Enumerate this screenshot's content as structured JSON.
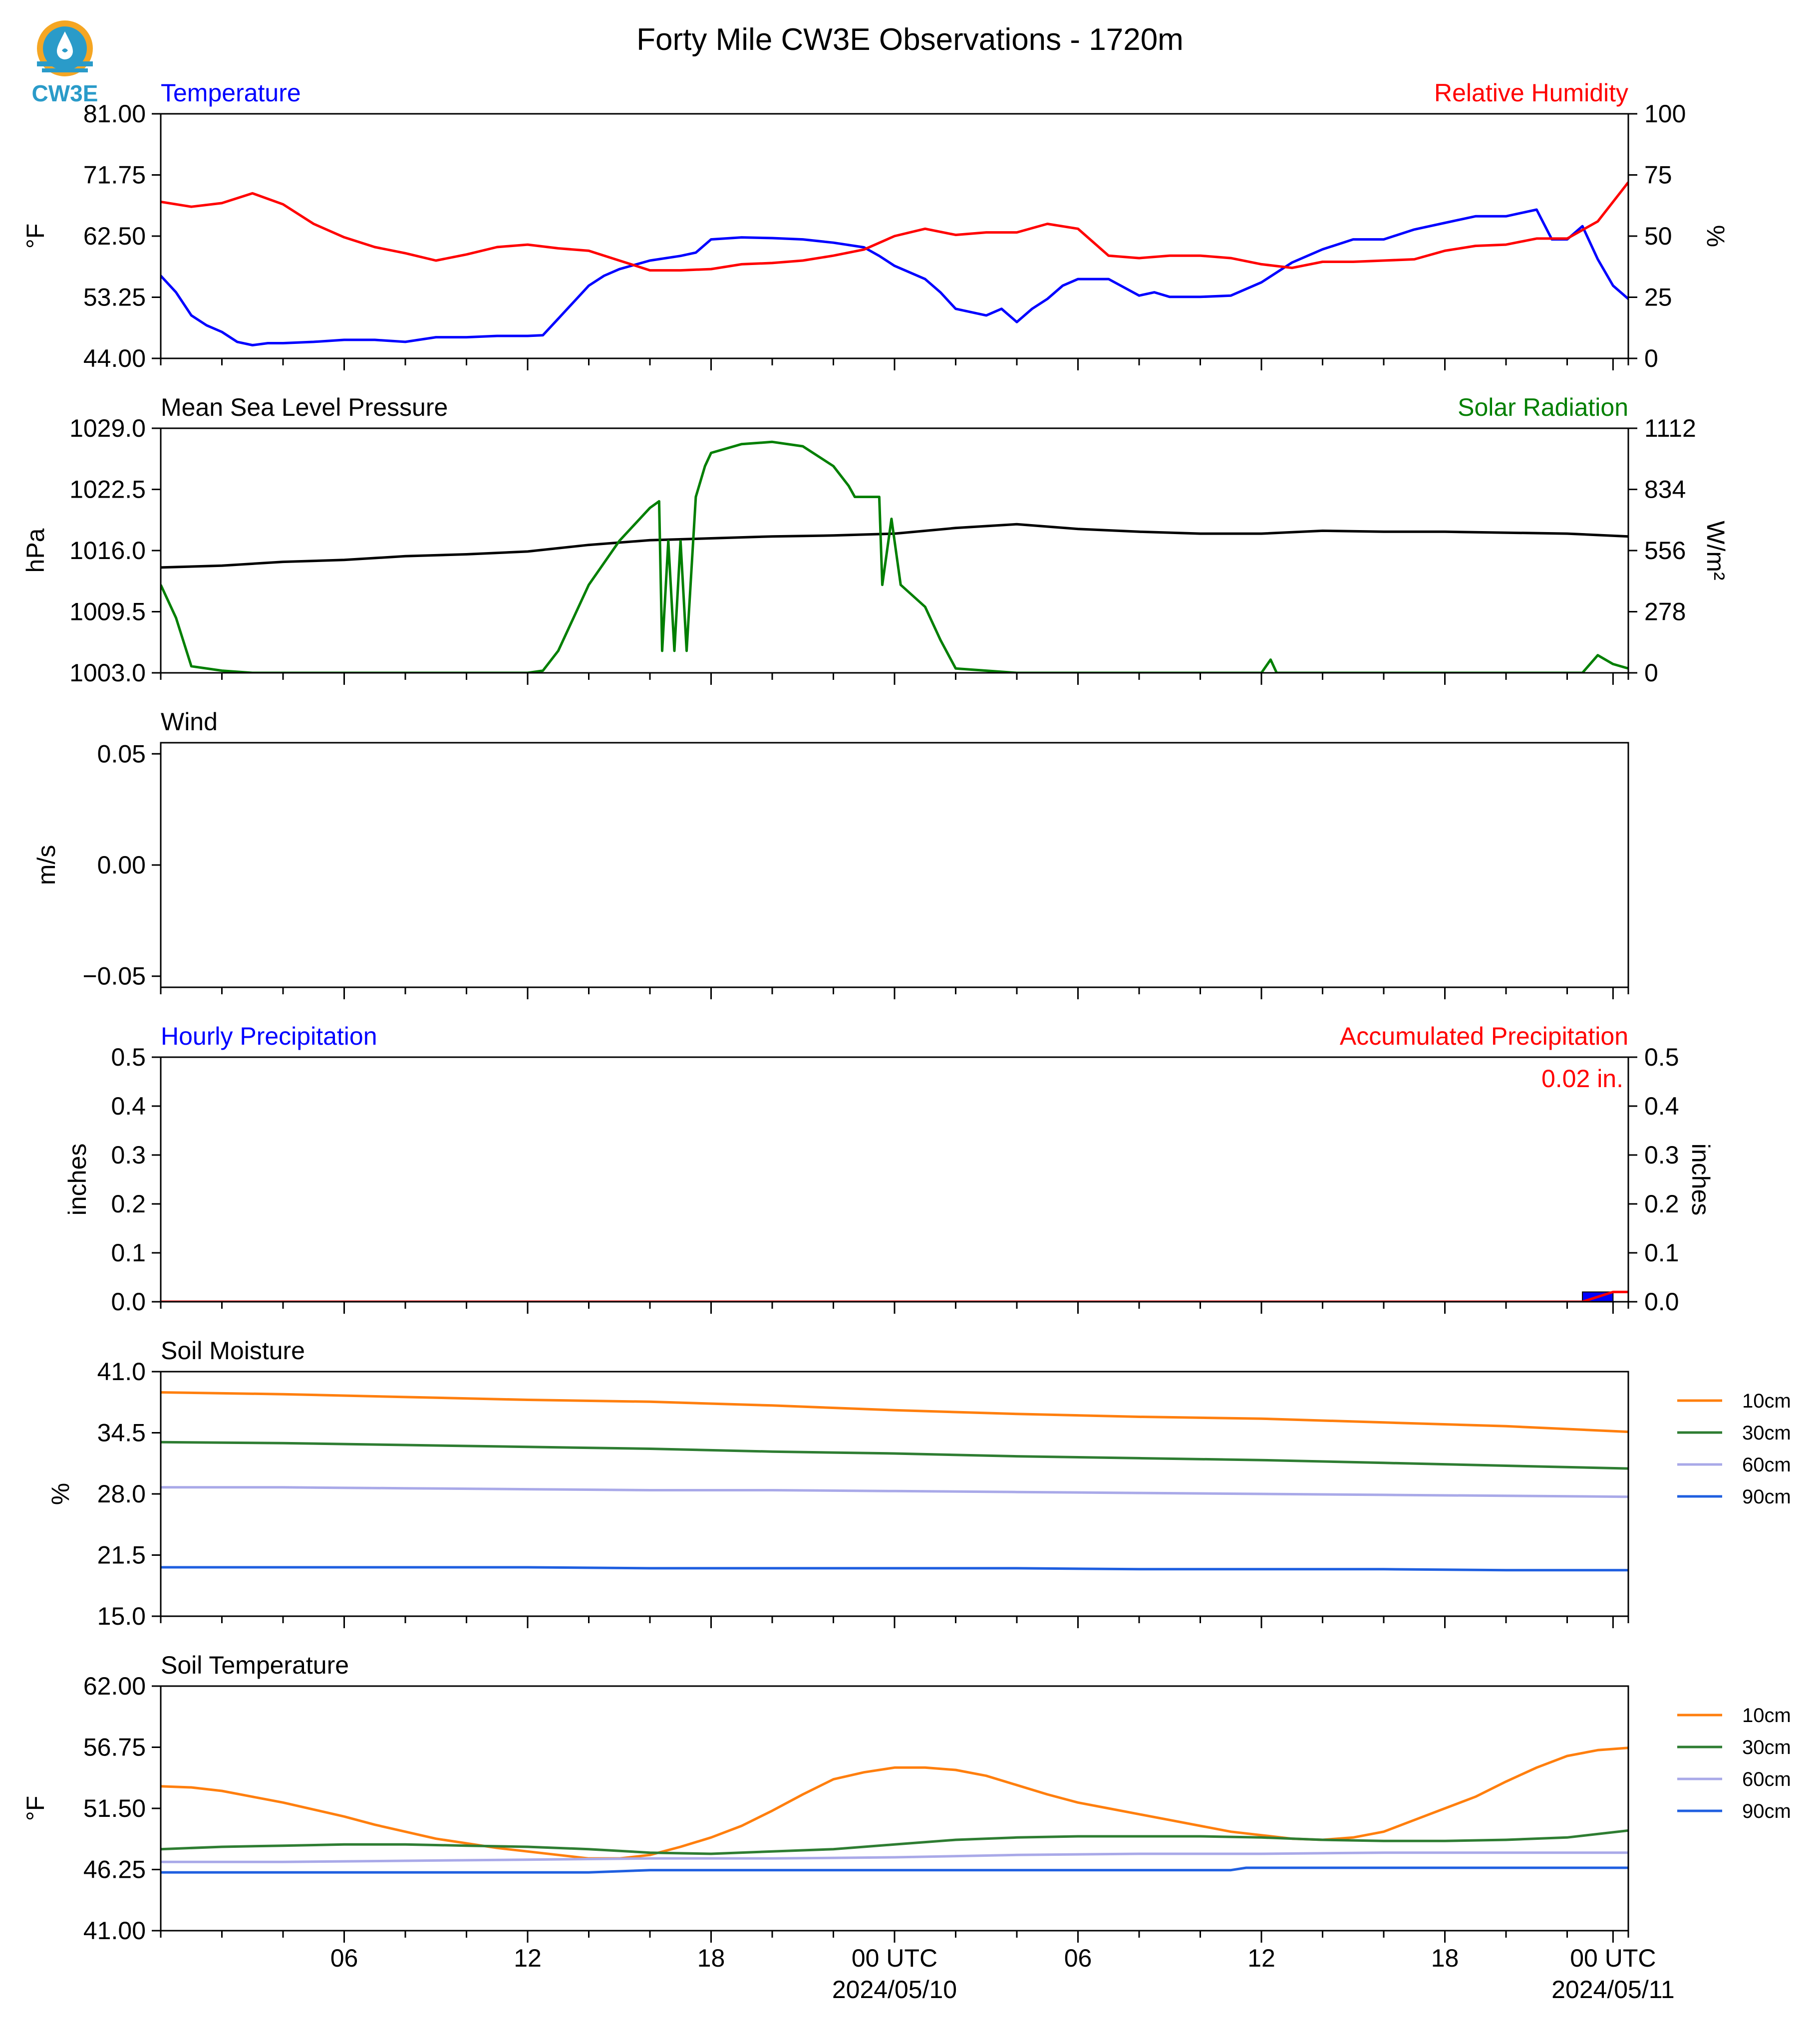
{
  "title": "Forty Mile CW3E Observations - 1720m",
  "logo": {
    "text": "CW3E",
    "color": "#2a9bc9",
    "accent": "#f5a623"
  },
  "colors": {
    "blue": "#0000ff",
    "red": "#ff0000",
    "green": "#007f00",
    "black": "#000000",
    "orange": "#ff7f0e",
    "darkgreen": "#2e7d32",
    "lavender": "#a9a9e8",
    "royal": "#1f5fe0"
  },
  "x_axis": {
    "tick_labels": [
      "06",
      "12",
      "18",
      "00 UTC",
      "06",
      "12",
      "18",
      "00 UTC"
    ],
    "date_labels": [
      "2024/05/10",
      "2024/05/11"
    ],
    "range_hours": [
      0,
      48
    ]
  },
  "panels": {
    "temperature": {
      "left_title": "Temperature",
      "right_title": "Relative Humidity",
      "left_unit": "°F",
      "right_unit": "%",
      "left_ticks": [
        "81.00",
        "71.75",
        "62.50",
        "53.25",
        "44.00"
      ],
      "right_ticks": [
        "100",
        "75",
        "50",
        "25",
        "0"
      ]
    },
    "pressure": {
      "left_title": "Mean Sea Level Pressure",
      "right_title": "Solar Radiation",
      "left_unit": "hPa",
      "right_unit": "W/m²",
      "left_ticks": [
        "1029.0",
        "1022.5",
        "1016.0",
        "1009.5",
        "1003.0"
      ],
      "right_ticks": [
        "1112",
        "834",
        "556",
        "278",
        "0"
      ]
    },
    "wind": {
      "left_title": "Wind",
      "left_unit": "m/s",
      "left_ticks": [
        "0.05",
        "0.00",
        "−0.05"
      ]
    },
    "precip": {
      "left_title": "Hourly Precipitation",
      "right_title": "Accumulated Precipitation",
      "left_unit": "inches",
      "right_unit": "inches",
      "left_ticks": [
        "0.5",
        "0.4",
        "0.3",
        "0.2",
        "0.1",
        "0.0"
      ],
      "right_ticks": [
        "0.5",
        "0.4",
        "0.3",
        "0.2",
        "0.1",
        "0.0"
      ],
      "accum_label": "0.02 in."
    },
    "soil_moisture": {
      "left_title": "Soil Moisture",
      "left_unit": "%",
      "left_ticks": [
        "41.0",
        "34.5",
        "28.0",
        "21.5",
        "15.0"
      ],
      "legend": [
        "10cm",
        "30cm",
        "60cm",
        "90cm"
      ]
    },
    "soil_temp": {
      "left_title": "Soil Temperature",
      "left_unit": "°F",
      "left_ticks": [
        "62.00",
        "56.75",
        "51.50",
        "46.25",
        "41.00"
      ],
      "legend": [
        "10cm",
        "30cm",
        "60cm",
        "90cm"
      ]
    }
  },
  "chart_data": [
    {
      "type": "line",
      "title": "Temperature / Relative Humidity",
      "xlim": [
        0,
        48
      ],
      "ylim": [
        44,
        81
      ],
      "y2lim": [
        0,
        100
      ],
      "series": [
        {
          "name": "Temperature",
          "axis": "left",
          "color": "#0000ff",
          "x": [
            0,
            0.5,
            1,
            1.5,
            2,
            2.5,
            3,
            3.5,
            4,
            5,
            6,
            7,
            8,
            9,
            10,
            11,
            12,
            12.5,
            13,
            13.5,
            14,
            14.5,
            15,
            16,
            17,
            17.5,
            18,
            19,
            20,
            21,
            22,
            23,
            23.5,
            24,
            25,
            25.5,
            26,
            27,
            27.5,
            28,
            28.5,
            29,
            29.5,
            30,
            31,
            32,
            32.5,
            33,
            34,
            35,
            36,
            37,
            38,
            39,
            40,
            41,
            42,
            43,
            44,
            45,
            45.5,
            46,
            46.5,
            47,
            47.5,
            48
          ],
          "y": [
            56.5,
            54,
            50.5,
            49,
            48,
            46.5,
            46,
            46.3,
            46.3,
            46.5,
            46.8,
            46.8,
            46.5,
            47.2,
            47.2,
            47.4,
            47.4,
            47.5,
            50,
            52.5,
            55,
            56.5,
            57.5,
            58.8,
            59.5,
            60,
            62,
            62.3,
            62.2,
            62,
            61.5,
            60.8,
            59.5,
            58,
            56,
            54,
            51.5,
            50.5,
            51.5,
            49.5,
            51.5,
            53,
            55,
            56,
            56,
            53.5,
            54,
            53.3,
            53.3,
            53.5,
            55.5,
            58.5,
            60.5,
            62,
            62,
            63.5,
            64.5,
            65.5,
            65.5,
            66.5,
            62,
            62,
            64,
            59,
            55,
            53
          ]
        },
        {
          "name": "Relative Humidity",
          "axis": "right",
          "color": "#ff0000",
          "x": [
            0,
            1,
            2,
            3,
            4,
            5,
            6,
            7,
            8,
            9,
            10,
            11,
            12,
            13,
            14,
            15,
            16,
            17,
            18,
            19,
            20,
            21,
            22,
            23,
            24,
            25,
            26,
            27,
            28,
            29,
            30,
            31,
            32,
            33,
            34,
            35,
            36,
            37,
            38,
            39,
            40,
            41,
            42,
            43,
            44,
            45,
            46,
            47,
            48
          ],
          "y": [
            64,
            62,
            63.5,
            67.5,
            63,
            55,
            49.5,
            45.5,
            43,
            40,
            42.5,
            45.5,
            46.5,
            45,
            44,
            40,
            36,
            36,
            36.5,
            38.5,
            39,
            40,
            42,
            44.5,
            50,
            53,
            50.5,
            51.5,
            51.5,
            55,
            53,
            42,
            41,
            42,
            42,
            41,
            38.5,
            37,
            39.5,
            39.5,
            40,
            40.5,
            44,
            46,
            46.5,
            49,
            49,
            56,
            72
          ]
        }
      ]
    },
    {
      "type": "line",
      "title": "Mean Sea Level Pressure / Solar Radiation",
      "xlim": [
        0,
        48
      ],
      "ylim": [
        1003,
        1029
      ],
      "y2lim": [
        0,
        1112
      ],
      "series": [
        {
          "name": "Mean Sea Level Pressure",
          "axis": "left",
          "color": "#000000",
          "x": [
            0,
            2,
            4,
            6,
            8,
            10,
            12,
            14,
            16,
            18,
            20,
            22,
            24,
            26,
            28,
            30,
            32,
            34,
            36,
            38,
            40,
            42,
            44,
            46,
            48
          ],
          "y": [
            1014.2,
            1014.4,
            1014.8,
            1015.0,
            1015.4,
            1015.6,
            1015.9,
            1016.6,
            1017.1,
            1017.3,
            1017.5,
            1017.6,
            1017.8,
            1018.4,
            1018.8,
            1018.3,
            1018.0,
            1017.8,
            1017.8,
            1018.1,
            1018.0,
            1018.0,
            1017.9,
            1017.8,
            1017.5
          ]
        },
        {
          "name": "Solar Radiation",
          "axis": "right",
          "color": "#007f00",
          "x": [
            0,
            0.5,
            1,
            2,
            3,
            4,
            5,
            6,
            7,
            8,
            9,
            10,
            11,
            12,
            12.5,
            13,
            13.5,
            14,
            15,
            16,
            16.3,
            16.4,
            16.6,
            16.8,
            17,
            17.2,
            17.5,
            17.8,
            18,
            19,
            20,
            21,
            22,
            22.5,
            22.7,
            23.5,
            23.6,
            23.9,
            24.2,
            25,
            25.5,
            26,
            27,
            28,
            29,
            30,
            31,
            32,
            33,
            34,
            35,
            36,
            36.3,
            36.5,
            37,
            38,
            39,
            40,
            41,
            42,
            43,
            44,
            44.5,
            45,
            45.5,
            46,
            46.5,
            47,
            47.5,
            48
          ],
          "y": [
            400,
            250,
            30,
            10,
            0,
            0,
            0,
            0,
            0,
            0,
            0,
            0,
            0,
            0,
            10,
            100,
            250,
            400,
            600,
            750,
            780,
            100,
            600,
            100,
            600,
            100,
            800,
            940,
            1000,
            1040,
            1050,
            1030,
            940,
            850,
            800,
            800,
            400,
            700,
            400,
            300,
            150,
            20,
            10,
            0,
            0,
            0,
            0,
            0,
            0,
            0,
            0,
            0,
            60,
            0,
            0,
            0,
            0,
            0,
            0,
            0,
            0,
            0,
            0,
            0,
            0,
            0,
            0,
            80,
            40,
            20
          ]
        }
      ]
    },
    {
      "type": "line",
      "title": "Wind",
      "xlim": [
        0,
        48
      ],
      "ylim": [
        -0.055,
        0.055
      ],
      "series": []
    },
    {
      "type": "bar",
      "title": "Hourly / Accumulated Precipitation",
      "xlim": [
        0,
        48
      ],
      "ylim": [
        0,
        0.5
      ],
      "y2lim": [
        0,
        0.5
      ],
      "series": [
        {
          "name": "Hourly Precipitation",
          "axis": "left",
          "color": "#0000ff",
          "x": [
            47
          ],
          "values": [
            0.02
          ]
        },
        {
          "name": "Accumulated Precipitation",
          "axis": "right",
          "color": "#ff0000",
          "x": [
            0,
            46.5,
            47.5,
            48
          ],
          "y": [
            0,
            0,
            0.02,
            0.02
          ]
        }
      ]
    },
    {
      "type": "line",
      "title": "Soil Moisture",
      "xlim": [
        0,
        48
      ],
      "ylim": [
        15,
        41
      ],
      "series": [
        {
          "name": "10cm",
          "color": "#ff7f0e",
          "x": [
            0,
            4,
            8,
            12,
            16,
            20,
            24,
            28,
            32,
            36,
            40,
            44,
            48
          ],
          "y": [
            38.8,
            38.6,
            38.3,
            38.0,
            37.8,
            37.4,
            36.9,
            36.5,
            36.2,
            36.0,
            35.6,
            35.2,
            34.6
          ]
        },
        {
          "name": "30cm",
          "color": "#2e7d32",
          "x": [
            0,
            4,
            8,
            12,
            16,
            20,
            24,
            28,
            32,
            36,
            40,
            44,
            48
          ],
          "y": [
            33.5,
            33.4,
            33.2,
            33.0,
            32.8,
            32.5,
            32.3,
            32.0,
            31.8,
            31.6,
            31.3,
            31.0,
            30.7
          ]
        },
        {
          "name": "60cm",
          "color": "#a9a9e8",
          "x": [
            0,
            4,
            8,
            12,
            16,
            20,
            24,
            28,
            32,
            36,
            40,
            44,
            48
          ],
          "y": [
            28.7,
            28.7,
            28.6,
            28.5,
            28.4,
            28.4,
            28.3,
            28.2,
            28.1,
            28.0,
            27.9,
            27.8,
            27.7
          ]
        },
        {
          "name": "90cm",
          "color": "#1f5fe0",
          "x": [
            0,
            4,
            8,
            12,
            16,
            20,
            24,
            28,
            32,
            36,
            40,
            44,
            48
          ],
          "y": [
            20.2,
            20.2,
            20.2,
            20.2,
            20.1,
            20.1,
            20.1,
            20.1,
            20.0,
            20.0,
            20.0,
            19.9,
            19.9
          ]
        }
      ]
    },
    {
      "type": "line",
      "title": "Soil Temperature",
      "xlim": [
        0,
        48
      ],
      "ylim": [
        41,
        62
      ],
      "series": [
        {
          "name": "10cm",
          "color": "#ff7f0e",
          "x": [
            0,
            1,
            2,
            3,
            4,
            5,
            6,
            7,
            8,
            9,
            10,
            11,
            12,
            13,
            14,
            15,
            16,
            17,
            18,
            19,
            20,
            21,
            22,
            23,
            24,
            25,
            26,
            27,
            28,
            29,
            30,
            31,
            32,
            33,
            34,
            35,
            36,
            37,
            38,
            39,
            40,
            41,
            42,
            43,
            44,
            45,
            46,
            47,
            48
          ],
          "y": [
            53.4,
            53.3,
            53.0,
            52.5,
            52.0,
            51.4,
            50.8,
            50.1,
            49.5,
            48.9,
            48.5,
            48.1,
            47.8,
            47.5,
            47.2,
            47.2,
            47.5,
            48.2,
            49.0,
            50.0,
            51.3,
            52.7,
            54.0,
            54.6,
            55.0,
            55.0,
            54.8,
            54.3,
            53.5,
            52.7,
            52.0,
            51.5,
            51.0,
            50.5,
            50.0,
            49.5,
            49.2,
            48.9,
            48.8,
            49.0,
            49.5,
            50.5,
            51.5,
            52.5,
            53.8,
            55.0,
            56.0,
            56.5,
            56.7
          ]
        },
        {
          "name": "30cm",
          "color": "#2e7d32",
          "x": [
            0,
            2,
            4,
            6,
            8,
            10,
            12,
            14,
            16,
            18,
            20,
            22,
            24,
            26,
            28,
            30,
            32,
            34,
            36,
            38,
            40,
            42,
            44,
            46,
            48
          ],
          "y": [
            48.0,
            48.2,
            48.3,
            48.4,
            48.4,
            48.3,
            48.2,
            48.0,
            47.7,
            47.6,
            47.8,
            48.0,
            48.4,
            48.8,
            49.0,
            49.1,
            49.1,
            49.1,
            49.0,
            48.8,
            48.7,
            48.7,
            48.8,
            49.0,
            49.6
          ]
        },
        {
          "name": "60cm",
          "color": "#a9a9e8",
          "x": [
            0,
            4,
            8,
            12,
            16,
            20,
            24,
            28,
            32,
            36,
            40,
            44,
            48
          ],
          "y": [
            46.9,
            46.9,
            47.0,
            47.1,
            47.2,
            47.2,
            47.3,
            47.5,
            47.6,
            47.6,
            47.7,
            47.7,
            47.7
          ]
        },
        {
          "name": "90cm",
          "color": "#1f5fe0",
          "x": [
            0,
            4,
            8,
            12,
            14,
            16,
            20,
            24,
            28,
            32,
            35,
            35.5,
            36,
            40,
            44,
            48
          ],
          "y": [
            46.0,
            46.0,
            46.0,
            46.0,
            46.0,
            46.2,
            46.2,
            46.2,
            46.2,
            46.2,
            46.2,
            46.4,
            46.4,
            46.4,
            46.4,
            46.4
          ]
        }
      ]
    }
  ]
}
